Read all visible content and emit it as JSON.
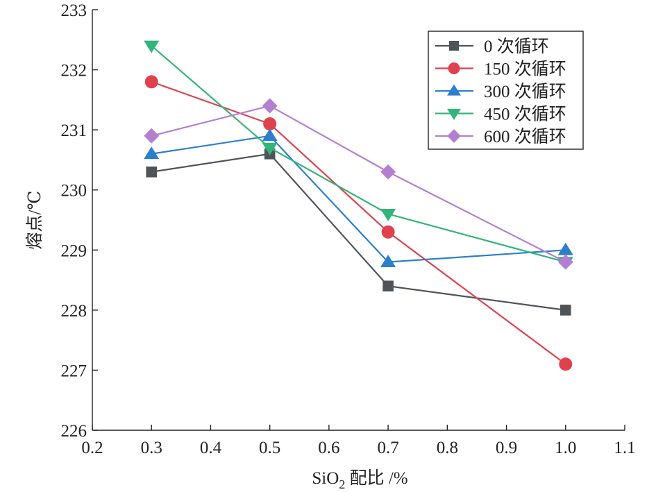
{
  "chart_data": {
    "type": "line",
    "xlabel": {
      "prefix": "SiO",
      "sub": "2",
      "suffix": " 配比 /%"
    },
    "ylabel": "熔点/℃",
    "xlim": [
      0.2,
      1.1
    ],
    "ylim": [
      226,
      233
    ],
    "xticks": [
      "0.2",
      "0.3",
      "0.4",
      "0.5",
      "0.6",
      "0.7",
      "0.8",
      "0.9",
      "1.0",
      "1.1"
    ],
    "yticks": [
      "226",
      "227",
      "228",
      "229",
      "230",
      "231",
      "232",
      "233"
    ],
    "x": [
      0.3,
      0.5,
      0.7,
      1.0
    ],
    "grid": false,
    "legend_position": "top-right",
    "series": [
      {
        "name": "0 次循环",
        "marker": "square",
        "color": "#4f5459",
        "values": [
          230.3,
          230.6,
          228.4,
          228.0
        ]
      },
      {
        "name": "150 次循环",
        "marker": "circle",
        "color": "#e0414e",
        "values": [
          231.8,
          231.1,
          229.3,
          227.1
        ]
      },
      {
        "name": "300 次循环",
        "marker": "triangle-up",
        "color": "#2b7fce",
        "values": [
          230.6,
          230.9,
          228.8,
          229.0
        ]
      },
      {
        "name": "450 次循环",
        "marker": "triangle-down",
        "color": "#33b47a",
        "values": [
          232.4,
          230.7,
          229.6,
          228.8
        ]
      },
      {
        "name": "600 次循环",
        "marker": "diamond",
        "color": "#b57fd0",
        "values": [
          230.9,
          231.4,
          230.3,
          228.8
        ]
      }
    ]
  }
}
